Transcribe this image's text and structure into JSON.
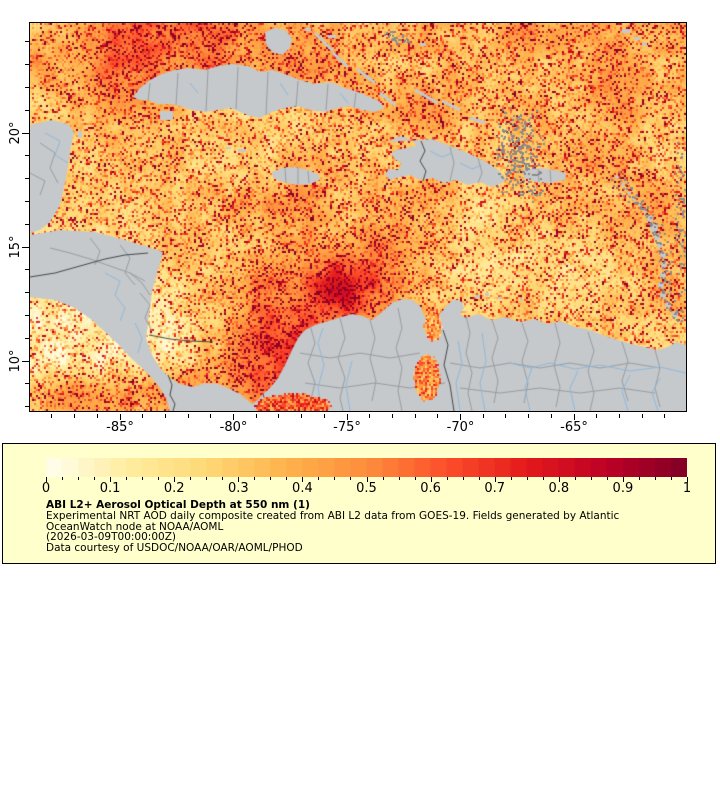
{
  "map": {
    "x_axis_labels": [
      "-85°",
      "-80°",
      "-75°",
      "-70°",
      "-65°"
    ],
    "y_axis_labels": [
      "20°",
      "15°",
      "10°"
    ],
    "land_color": "#c6c9cb",
    "cloud_color": "#8a8a8a",
    "admin_border_color": "#999da1",
    "country_border_color": "#45494d",
    "river_color": "#8fb8dc"
  },
  "colorbar": {
    "tick_labels": [
      "0",
      "0.1",
      "0.2",
      "0.3",
      "0.4",
      "0.5",
      "0.6",
      "0.7",
      "0.8",
      "0.9",
      "1"
    ],
    "palette": [
      "#fffff0",
      "#ffeda0",
      "#fed976",
      "#feb24c",
      "#fd8d3c",
      "#fc4e2a",
      "#e31a1c",
      "#bd0026",
      "#800026"
    ]
  },
  "legend": {
    "background": "#ffffcc",
    "title": "ABI L2+ Aerosol Optical Depth at 550 nm (1)",
    "line1": "Experimental NRT AOD daily composite created from ABI L2 data from GOES-19. Fields generated by Atlantic",
    "line2": "OceanWatch node at NOAA/AOML",
    "line3": "(2026-03-09T00:00:00Z)",
    "line4": "Data courtesy of USDOC/NOAA/OAR/AOML/PHOD"
  }
}
